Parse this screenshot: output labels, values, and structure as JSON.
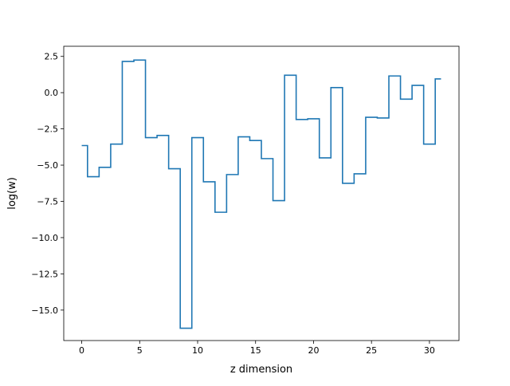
{
  "chart_data": {
    "type": "line",
    "drawstyle": "steps-mid",
    "title": "",
    "xlabel": "z dimension",
    "ylabel": "log(w)",
    "xlim": [
      -1.55,
      32.55
    ],
    "ylim": [
      -17.1,
      3.2
    ],
    "xticks": [
      0,
      5,
      10,
      15,
      20,
      25,
      30
    ],
    "xtick_labels": [
      "0",
      "5",
      "10",
      "15",
      "20",
      "25",
      "30"
    ],
    "yticks": [
      2.5,
      0.0,
      -2.5,
      -5.0,
      -7.5,
      -10.0,
      -12.5,
      -15.0
    ],
    "ytick_labels": [
      "2.5",
      "0.0",
      "−2.5",
      "−5.0",
      "−7.5",
      "−10.0",
      "−12.5",
      "−15.0"
    ],
    "grid": false,
    "series": [
      {
        "color": "#1f77b4",
        "x": [
          0,
          1,
          2,
          3,
          4,
          5,
          6,
          7,
          8,
          9,
          10,
          11,
          12,
          13,
          14,
          15,
          16,
          17,
          18,
          19,
          20,
          21,
          22,
          23,
          24,
          25,
          26,
          27,
          28,
          29,
          30,
          31
        ],
        "values": [
          -3.65,
          -5.8,
          -5.15,
          -3.55,
          2.15,
          2.25,
          -3.1,
          -2.95,
          -5.25,
          -16.25,
          -3.1,
          -6.15,
          -8.25,
          -5.65,
          -3.05,
          -3.3,
          -4.55,
          -7.45,
          1.2,
          -1.85,
          -1.8,
          -4.5,
          0.35,
          -6.25,
          -5.6,
          -1.7,
          -1.75,
          1.15,
          -0.45,
          0.5,
          -3.55,
          0.95
        ]
      }
    ]
  }
}
